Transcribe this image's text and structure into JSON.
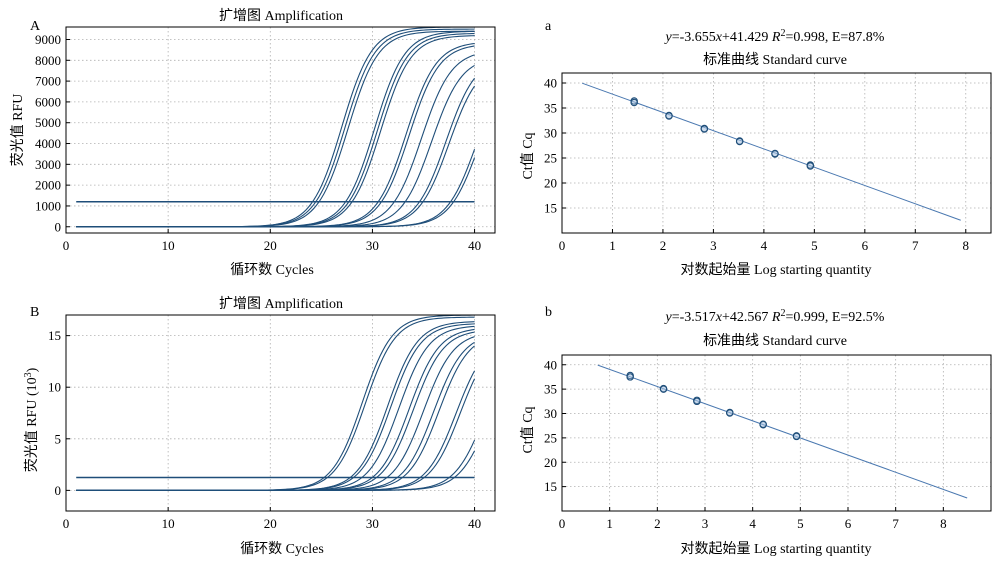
{
  "colors": {
    "curve": "#1f4e79",
    "fit_line": "#4a78b0",
    "point_edge": "#1f4e79",
    "point_fill": "#a9c4e0",
    "grid": "#b0b0b0"
  },
  "chart_data": [
    {
      "panel": "A",
      "type": "line",
      "title": "扩增图 Amplification",
      "xlabel": "循环数 Cycles",
      "ylabel": "荧光值 RFU",
      "xlim": [
        0,
        42
      ],
      "ylim": [
        -300,
        9600
      ],
      "xticks": [
        0,
        10,
        20,
        30,
        40
      ],
      "yticks": [
        0,
        1000,
        2000,
        3000,
        4000,
        5000,
        6000,
        7000,
        8000,
        9000
      ],
      "grid": true,
      "threshold": 1200,
      "x_range": [
        1,
        40
      ],
      "series": [
        {
          "midpoint": 27.0,
          "plateau": 9600
        },
        {
          "midpoint": 27.3,
          "plateau": 9500
        },
        {
          "midpoint": 27.6,
          "plateau": 9400
        },
        {
          "midpoint": 30.2,
          "plateau": 9400
        },
        {
          "midpoint": 30.5,
          "plateau": 9300
        },
        {
          "midpoint": 30.8,
          "plateau": 9200
        },
        {
          "midpoint": 33.3,
          "plateau": 8900
        },
        {
          "midpoint": 33.6,
          "plateau": 8800
        },
        {
          "midpoint": 34.8,
          "plateau": 8500
        },
        {
          "midpoint": 35.8,
          "plateau": 8200
        },
        {
          "midpoint": 37.2,
          "plateau": 8200
        },
        {
          "midpoint": 37.5,
          "plateau": 8000
        },
        {
          "midpoint": 40.2,
          "plateau": 8000
        },
        {
          "midpoint": 40.5,
          "plateau": 8000
        }
      ]
    },
    {
      "panel": "a",
      "type": "scatter",
      "equation": "y=-3.655x+41.429  R²=0.998,  E=87.8%",
      "title": "标准曲线 Standard curve",
      "xlabel": "对数起始量 Log starting quantity",
      "ylabel": "Ct值 Cq",
      "xlim": [
        0,
        8.5
      ],
      "ylim": [
        10,
        42
      ],
      "xticks": [
        0,
        1,
        2,
        3,
        4,
        5,
        6,
        7,
        8
      ],
      "yticks": [
        15,
        20,
        25,
        30,
        35,
        40
      ],
      "grid": true,
      "fit": {
        "slope": -3.655,
        "intercept": 41.429,
        "x_range": [
          0.4,
          7.9
        ]
      },
      "points": [
        {
          "x": 1.43,
          "y": 36.4
        },
        {
          "x": 1.43,
          "y": 36.1
        },
        {
          "x": 2.12,
          "y": 33.5
        },
        {
          "x": 2.12,
          "y": 33.4
        },
        {
          "x": 2.82,
          "y": 30.9
        },
        {
          "x": 2.82,
          "y": 30.8
        },
        {
          "x": 3.52,
          "y": 28.4
        },
        {
          "x": 3.52,
          "y": 28.3
        },
        {
          "x": 4.22,
          "y": 25.8
        },
        {
          "x": 4.22,
          "y": 25.9
        },
        {
          "x": 4.92,
          "y": 23.6
        },
        {
          "x": 4.92,
          "y": 23.4
        }
      ]
    },
    {
      "panel": "B",
      "type": "line",
      "title": "扩增图 Amplification",
      "xlabel": "循环数 Cycles",
      "ylabel": "荧光值 RFU (10³)",
      "xlim": [
        0,
        42
      ],
      "ylim": [
        -2,
        17
      ],
      "xticks": [
        0,
        10,
        20,
        30,
        40
      ],
      "yticks": [
        0,
        5,
        10,
        15
      ],
      "grid": true,
      "threshold": 1.25,
      "x_range": [
        1,
        40
      ],
      "series": [
        {
          "midpoint": 29.0,
          "plateau": 17.0
        },
        {
          "midpoint": 29.3,
          "plateau": 16.8
        },
        {
          "midpoint": 31.5,
          "plateau": 16.4
        },
        {
          "midpoint": 31.8,
          "plateau": 16.2
        },
        {
          "midpoint": 32.6,
          "plateau": 16.0
        },
        {
          "midpoint": 33.6,
          "plateau": 15.8
        },
        {
          "midpoint": 34.0,
          "plateau": 15.6
        },
        {
          "midpoint": 35.0,
          "plateau": 15.4
        },
        {
          "midpoint": 36.0,
          "plateau": 15.3
        },
        {
          "midpoint": 36.5,
          "plateau": 15.3
        },
        {
          "midpoint": 38.2,
          "plateau": 15.0
        },
        {
          "midpoint": 38.6,
          "plateau": 15.0
        },
        {
          "midpoint": 41.0,
          "plateau": 14.5
        },
        {
          "midpoint": 41.5,
          "plateau": 14.5
        }
      ]
    },
    {
      "panel": "b",
      "type": "scatter",
      "equation": "y=-3.517x+42.567  R²=0.999,  E=92.5%",
      "title": "标准曲线 Standard curve",
      "xlabel": "对数起始量 Log starting quantity",
      "ylabel": "Ct值 Cq",
      "xlim": [
        0,
        9
      ],
      "ylim": [
        10,
        42
      ],
      "xticks": [
        0,
        1,
        2,
        3,
        4,
        5,
        6,
        7,
        8
      ],
      "yticks": [
        15,
        20,
        25,
        30,
        35,
        40
      ],
      "grid": true,
      "fit": {
        "slope": -3.517,
        "intercept": 42.567,
        "x_range": [
          0.75,
          8.5
        ]
      },
      "points": [
        {
          "x": 1.43,
          "y": 37.8
        },
        {
          "x": 1.43,
          "y": 37.5
        },
        {
          "x": 2.13,
          "y": 35.1
        },
        {
          "x": 2.13,
          "y": 35.0
        },
        {
          "x": 2.83,
          "y": 32.7
        },
        {
          "x": 2.83,
          "y": 32.5
        },
        {
          "x": 3.52,
          "y": 30.2
        },
        {
          "x": 3.52,
          "y": 30.1
        },
        {
          "x": 4.22,
          "y": 27.7
        },
        {
          "x": 4.22,
          "y": 27.8
        },
        {
          "x": 4.92,
          "y": 25.4
        },
        {
          "x": 4.92,
          "y": 25.3
        }
      ]
    }
  ]
}
